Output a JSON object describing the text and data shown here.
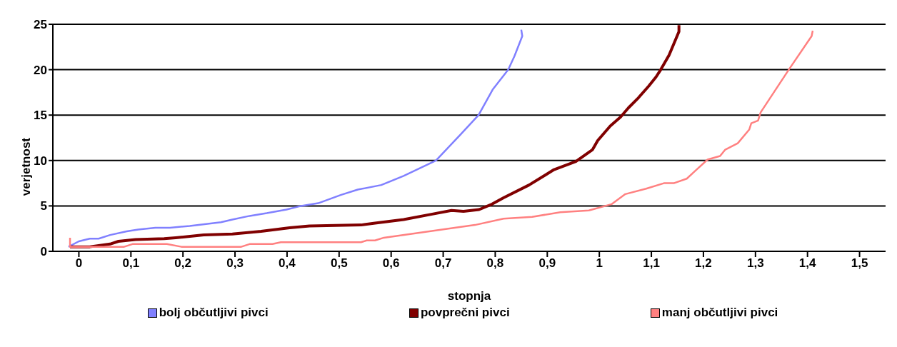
{
  "chart_data": {
    "type": "line",
    "xlabel": "stopnja",
    "ylabel": "verjetnost",
    "xlim": [
      -0.05,
      1.55
    ],
    "xticks": [
      0,
      {
        "value": 0.1,
        "label": "0,1"
      },
      {
        "value": 0.2,
        "label": "0,2"
      },
      {
        "value": 0.3,
        "label": "0,3"
      },
      {
        "value": 0.4,
        "label": "0,4"
      },
      {
        "value": 0.5,
        "label": "0,5"
      },
      {
        "value": 0.6,
        "label": "0,6"
      },
      {
        "value": 0.7,
        "label": "0,7"
      },
      {
        "value": 0.8,
        "label": "0,8"
      },
      {
        "value": 0.9,
        "label": "0,9"
      },
      1,
      {
        "value": 1.1,
        "label": "1,1"
      },
      {
        "value": 1.2,
        "label": "1,2"
      },
      {
        "value": 1.3,
        "label": "1,3"
      },
      {
        "value": 1.4,
        "label": "1,4"
      },
      {
        "value": 1.5,
        "label": "1,5"
      }
    ],
    "ylim": [
      0,
      25
    ],
    "yticks": [
      0,
      5,
      10,
      15,
      20,
      25
    ],
    "grid": "y",
    "legend": "bottom",
    "marker": "none",
    "line_style": "solid",
    "series": [
      {
        "name": "bolj občutljivi pivci",
        "color": "#8080ff",
        "x": [
          -0.02,
          0,
          0.021,
          0.038,
          0.06,
          0.092,
          0.114,
          0.147,
          0.175,
          0.213,
          0.273,
          0.295,
          0.328,
          0.361,
          0.399,
          0.427,
          0.46,
          0.503,
          0.536,
          0.581,
          0.624,
          0.686,
          0.734,
          0.768,
          0.795,
          0.825,
          0.837,
          0.852,
          0.85
        ],
        "values": [
          0.5,
          1.1,
          1.4,
          1.4,
          1.8,
          2.2,
          2.4,
          2.6,
          2.6,
          2.8,
          3.2,
          3.5,
          3.9,
          4.2,
          4.6,
          5.0,
          5.3,
          6.2,
          6.8,
          7.3,
          8.3,
          10,
          12.9,
          15,
          17.8,
          20,
          21.5,
          23.7,
          24.4
        ]
      },
      {
        "name": "povprečni pivci",
        "color": "#800000",
        "x": [
          -0.017,
          0.021,
          0.06,
          0.076,
          0.109,
          0.164,
          0.186,
          0.24,
          0.295,
          0.35,
          0.405,
          0.443,
          0.542,
          0.569,
          0.624,
          0.679,
          0.716,
          0.739,
          0.769,
          0.794,
          0.816,
          0.865,
          0.913,
          0.955,
          0.987,
          0.997,
          1.021,
          1.041,
          1.056,
          1.075,
          1.095,
          1.109,
          1.118,
          1.134,
          1.153,
          1.153
        ],
        "values": [
          0.5,
          0.5,
          0.8,
          1.1,
          1.3,
          1.4,
          1.5,
          1.8,
          1.9,
          2.2,
          2.6,
          2.8,
          2.9,
          3.1,
          3.5,
          4.1,
          4.5,
          4.4,
          4.6,
          5.2,
          5.9,
          7.3,
          9,
          9.9,
          11.2,
          12.2,
          13.8,
          14.8,
          15.8,
          16.9,
          18.2,
          19.2,
          20,
          21.6,
          24.2,
          24.9
        ]
      },
      {
        "name": "manj občutljivi pivci",
        "color": "#ff8080",
        "x": [
          -0.017,
          -0.017,
          0.021,
          0.087,
          0.103,
          0.169,
          0.197,
          0.312,
          0.328,
          0.372,
          0.388,
          0.542,
          0.553,
          0.569,
          0.586,
          0.761,
          0.816,
          0.871,
          0.925,
          0.98,
          1.024,
          1.05,
          1.09,
          1.124,
          1.143,
          1.168,
          1.183,
          1.208,
          1.232,
          1.242,
          1.266,
          1.288,
          1.292,
          1.305,
          1.31,
          1.364,
          1.408,
          1.41
        ],
        "values": [
          1.5,
          0.5,
          0.5,
          0.5,
          0.8,
          0.8,
          0.5,
          0.5,
          0.8,
          0.8,
          1.0,
          1.0,
          1.2,
          1.2,
          1.5,
          2.9,
          3.6,
          3.8,
          4.3,
          4.5,
          5.2,
          6.3,
          6.9,
          7.5,
          7.5,
          8,
          8.8,
          10.1,
          10.5,
          11.2,
          11.9,
          13.4,
          14.1,
          14.4,
          15.3,
          20,
          23.7,
          24.3
        ]
      }
    ]
  }
}
